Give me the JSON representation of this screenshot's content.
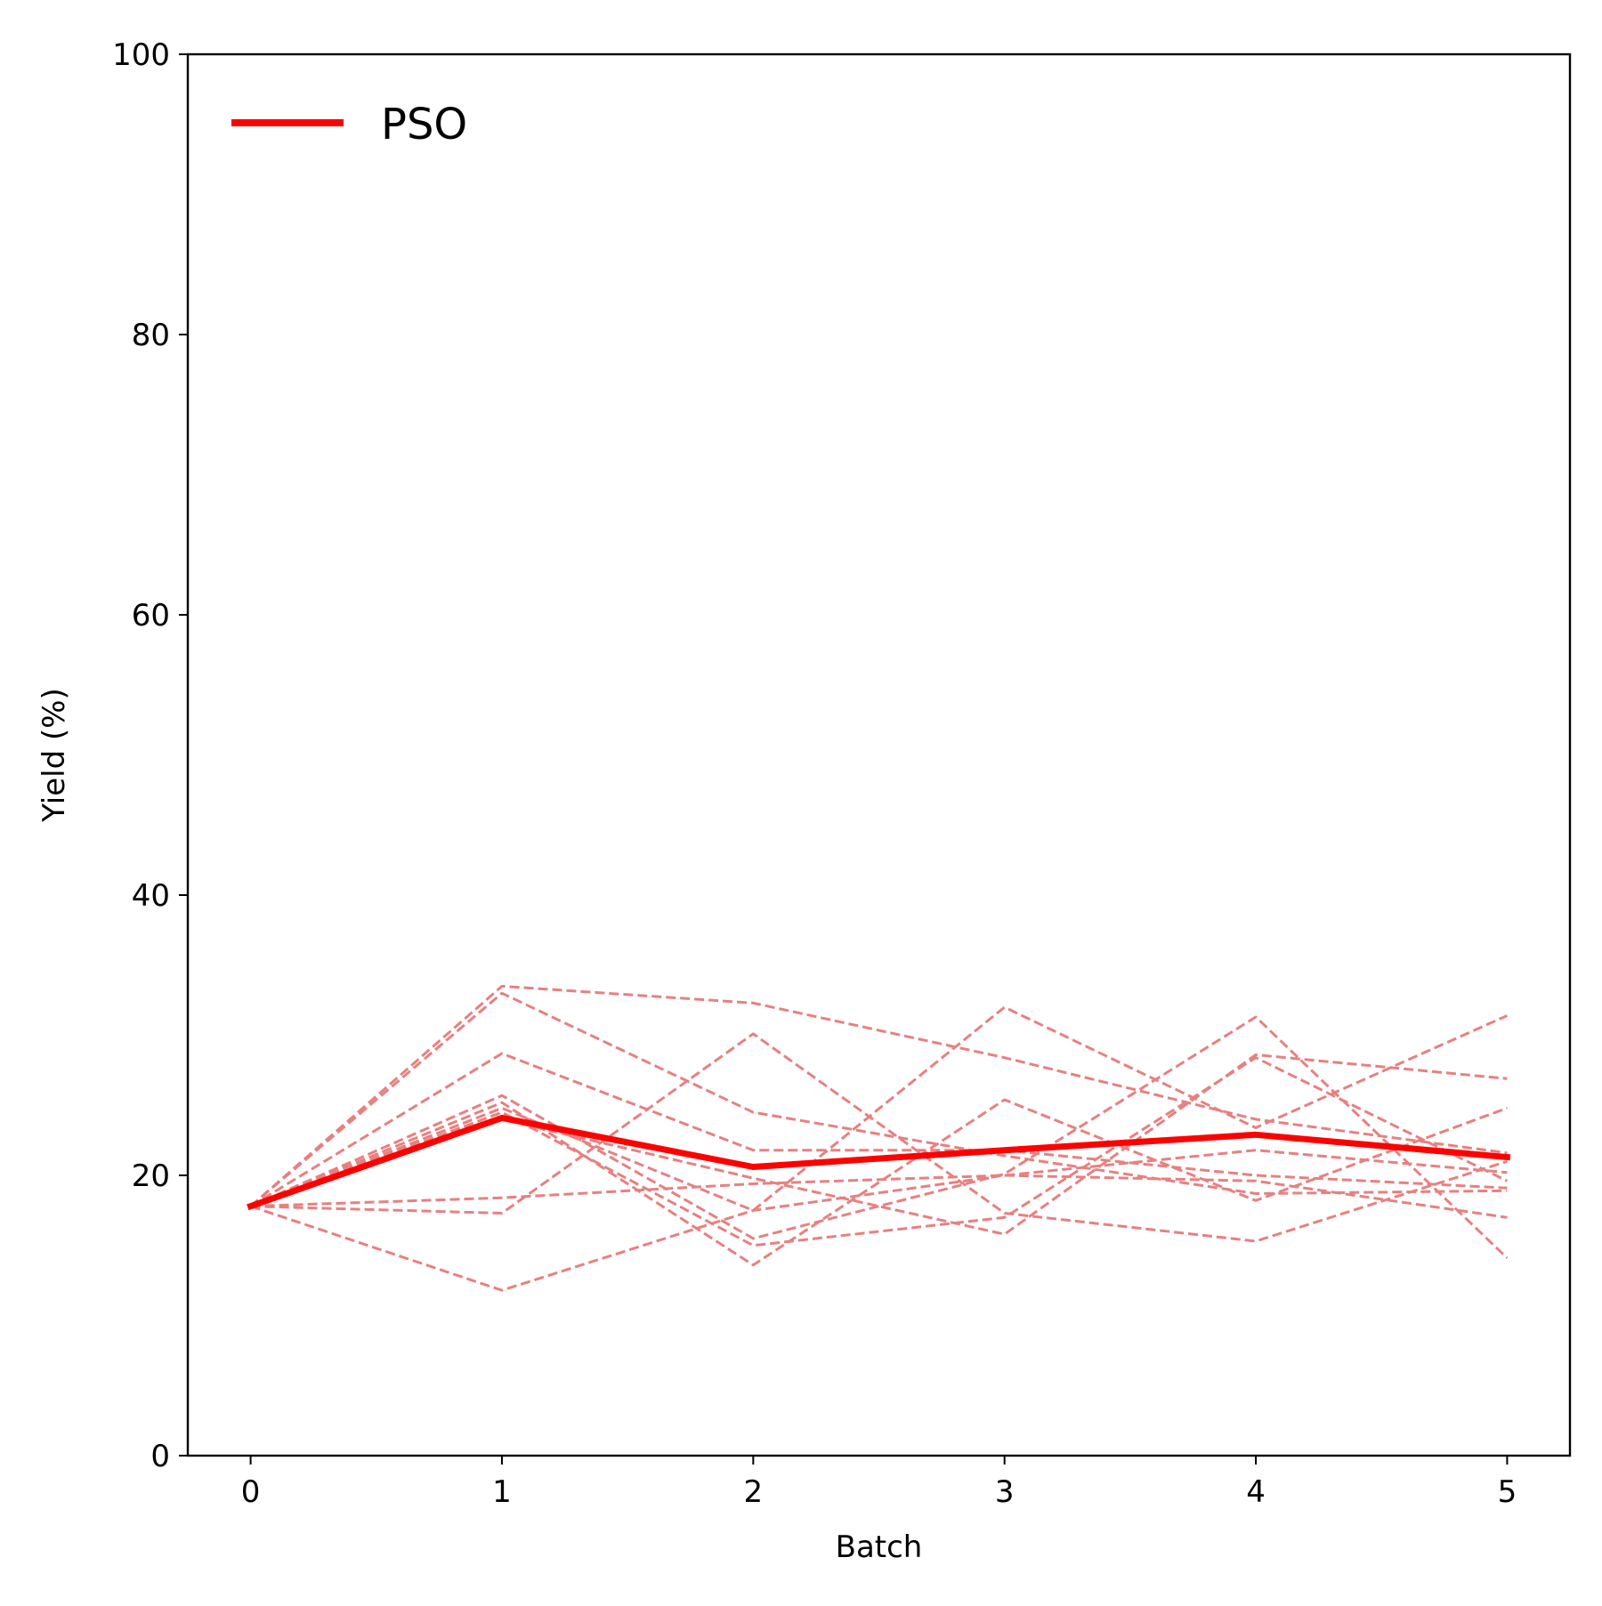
{
  "chart_data": {
    "type": "line",
    "title": "",
    "xlabel": "Batch",
    "ylabel": "Yield (%)",
    "xlim": [
      -0.25,
      5.25
    ],
    "ylim": [
      0,
      100
    ],
    "x": [
      0,
      1,
      2,
      3,
      4,
      5
    ],
    "xticks": [
      "0",
      "1",
      "2",
      "3",
      "4",
      "5"
    ],
    "yticks": [
      "0",
      "20",
      "40",
      "60",
      "80",
      "100"
    ],
    "ytick_values": [
      0,
      20,
      40,
      60,
      80,
      100
    ],
    "grid": false,
    "legend_position": "top-left",
    "mean_series": {
      "name": "PSO",
      "color": "#ff0000",
      "values": [
        17.8,
        24.1,
        20.6,
        21.8,
        22.9,
        21.3
      ]
    },
    "runs": {
      "color": "#e88080",
      "style": "dashed",
      "series": [
        {
          "values": [
            17.8,
            33.5,
            32.3,
            28.4,
            24.0,
            21.6
          ]
        },
        {
          "values": [
            17.8,
            33.0,
            24.5,
            21.4,
            18.7,
            18.9
          ]
        },
        {
          "values": [
            17.8,
            28.7,
            21.8,
            21.8,
            20.0,
            19.1
          ]
        },
        {
          "values": [
            17.8,
            25.7,
            15.5,
            20.1,
            31.3,
            14.1
          ]
        },
        {
          "values": [
            17.8,
            25.2,
            13.6,
            25.4,
            18.2,
            24.8
          ]
        },
        {
          "values": [
            17.8,
            24.8,
            17.5,
            32.0,
            23.4,
            31.4
          ]
        },
        {
          "values": [
            17.8,
            24.5,
            15.0,
            17.0,
            28.4,
            19.6
          ]
        },
        {
          "values": [
            17.8,
            24.0,
            19.8,
            15.8,
            28.6,
            26.9
          ]
        },
        {
          "values": [
            17.8,
            18.4,
            19.4,
            20.0,
            19.6,
            17.0
          ]
        },
        {
          "values": [
            17.8,
            17.3,
            30.1,
            17.3,
            15.3,
            21.0
          ]
        },
        {
          "values": [
            17.8,
            11.8,
            17.5,
            20.0,
            21.8,
            20.2
          ]
        }
      ]
    }
  }
}
